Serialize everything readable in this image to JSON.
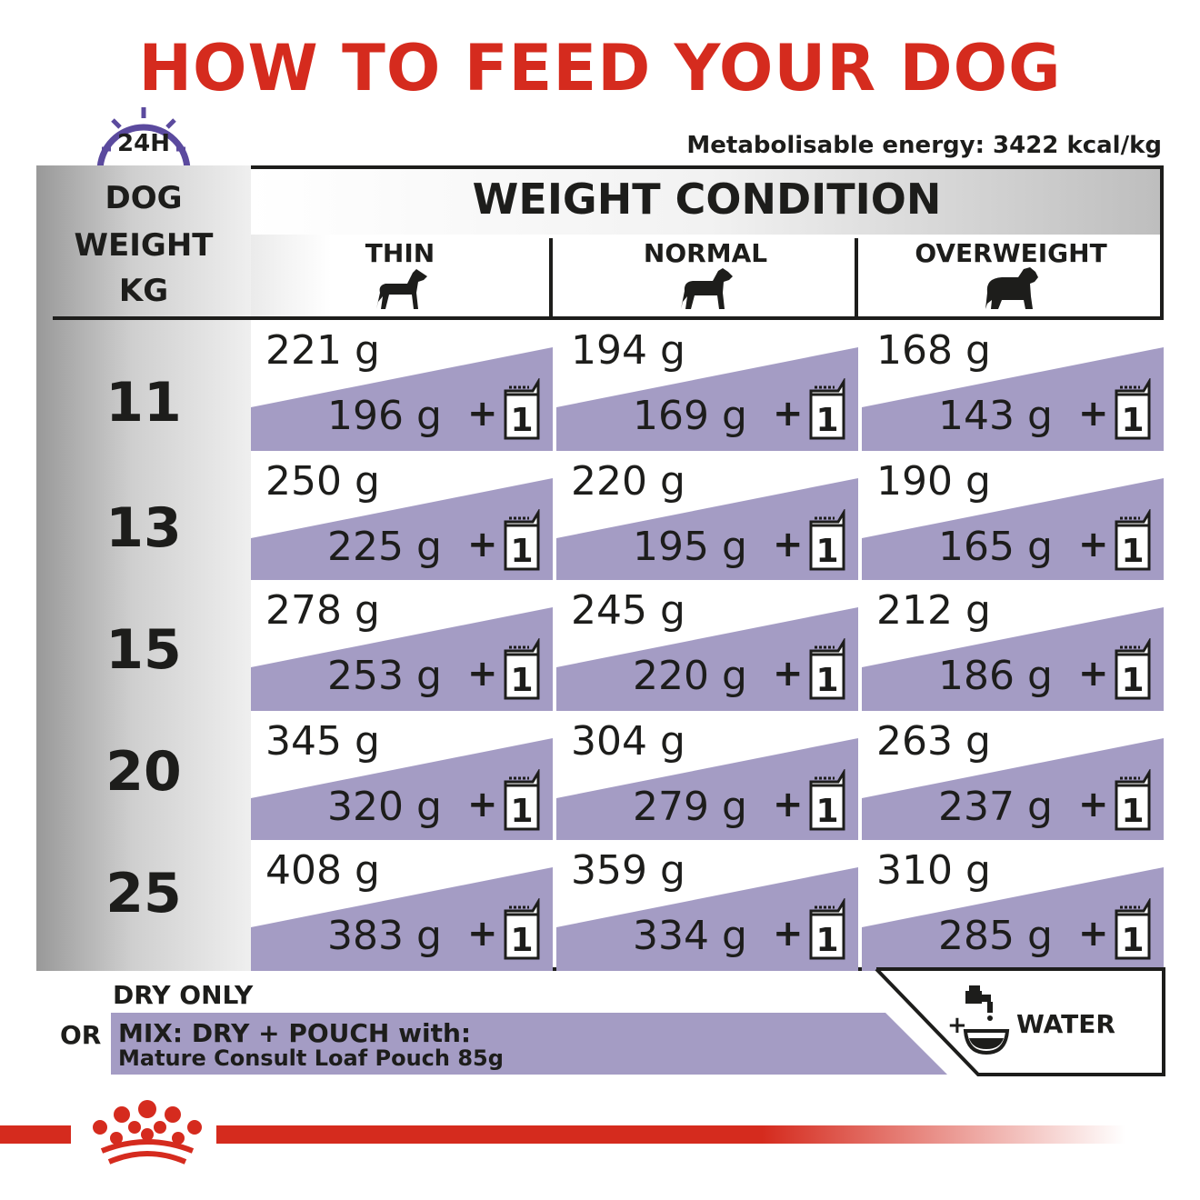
{
  "header": {
    "title": "HOW TO FEED YOUR DOG",
    "clock_label": "24H",
    "energy": "Metabolisable energy: 3422 kcal/kg"
  },
  "table": {
    "weight_header": [
      "DOG",
      "WEIGHT",
      "KG"
    ],
    "condition_title": "WEIGHT CONDITION",
    "columns": [
      "THIN",
      "NORMAL",
      "OVERWEIGHT"
    ],
    "pouch_count": "1",
    "plus": "+",
    "rows": [
      {
        "weight": "11",
        "cells": [
          {
            "dry": "221 g",
            "mix": "196 g"
          },
          {
            "dry": "194 g",
            "mix": "169 g"
          },
          {
            "dry": "168 g",
            "mix": "143 g"
          }
        ]
      },
      {
        "weight": "13",
        "cells": [
          {
            "dry": "250 g",
            "mix": "225 g"
          },
          {
            "dry": "220 g",
            "mix": "195 g"
          },
          {
            "dry": "190 g",
            "mix": "165 g"
          }
        ]
      },
      {
        "weight": "15",
        "cells": [
          {
            "dry": "278 g",
            "mix": "253 g"
          },
          {
            "dry": "245 g",
            "mix": "220 g"
          },
          {
            "dry": "212 g",
            "mix": "186 g"
          }
        ]
      },
      {
        "weight": "20",
        "cells": [
          {
            "dry": "345 g",
            "mix": "320 g"
          },
          {
            "dry": "304 g",
            "mix": "279 g"
          },
          {
            "dry": "263 g",
            "mix": "237 g"
          }
        ]
      },
      {
        "weight": "25",
        "cells": [
          {
            "dry": "408 g",
            "mix": "383 g"
          },
          {
            "dry": "359 g",
            "mix": "334 g"
          },
          {
            "dry": "310 g",
            "mix": "285 g"
          }
        ]
      }
    ]
  },
  "legend": {
    "dry_only": "DRY ONLY",
    "or": "OR",
    "mix_line1": "MIX: DRY + POUCH with:",
    "mix_line2": "Mature Consult Loaf Pouch 85g",
    "water_plus": "+",
    "water": "WATER"
  },
  "colors": {
    "brand_red": "#d52b1e",
    "band_purple": "#a49cc4",
    "clock_purple": "#5b4a9e"
  }
}
